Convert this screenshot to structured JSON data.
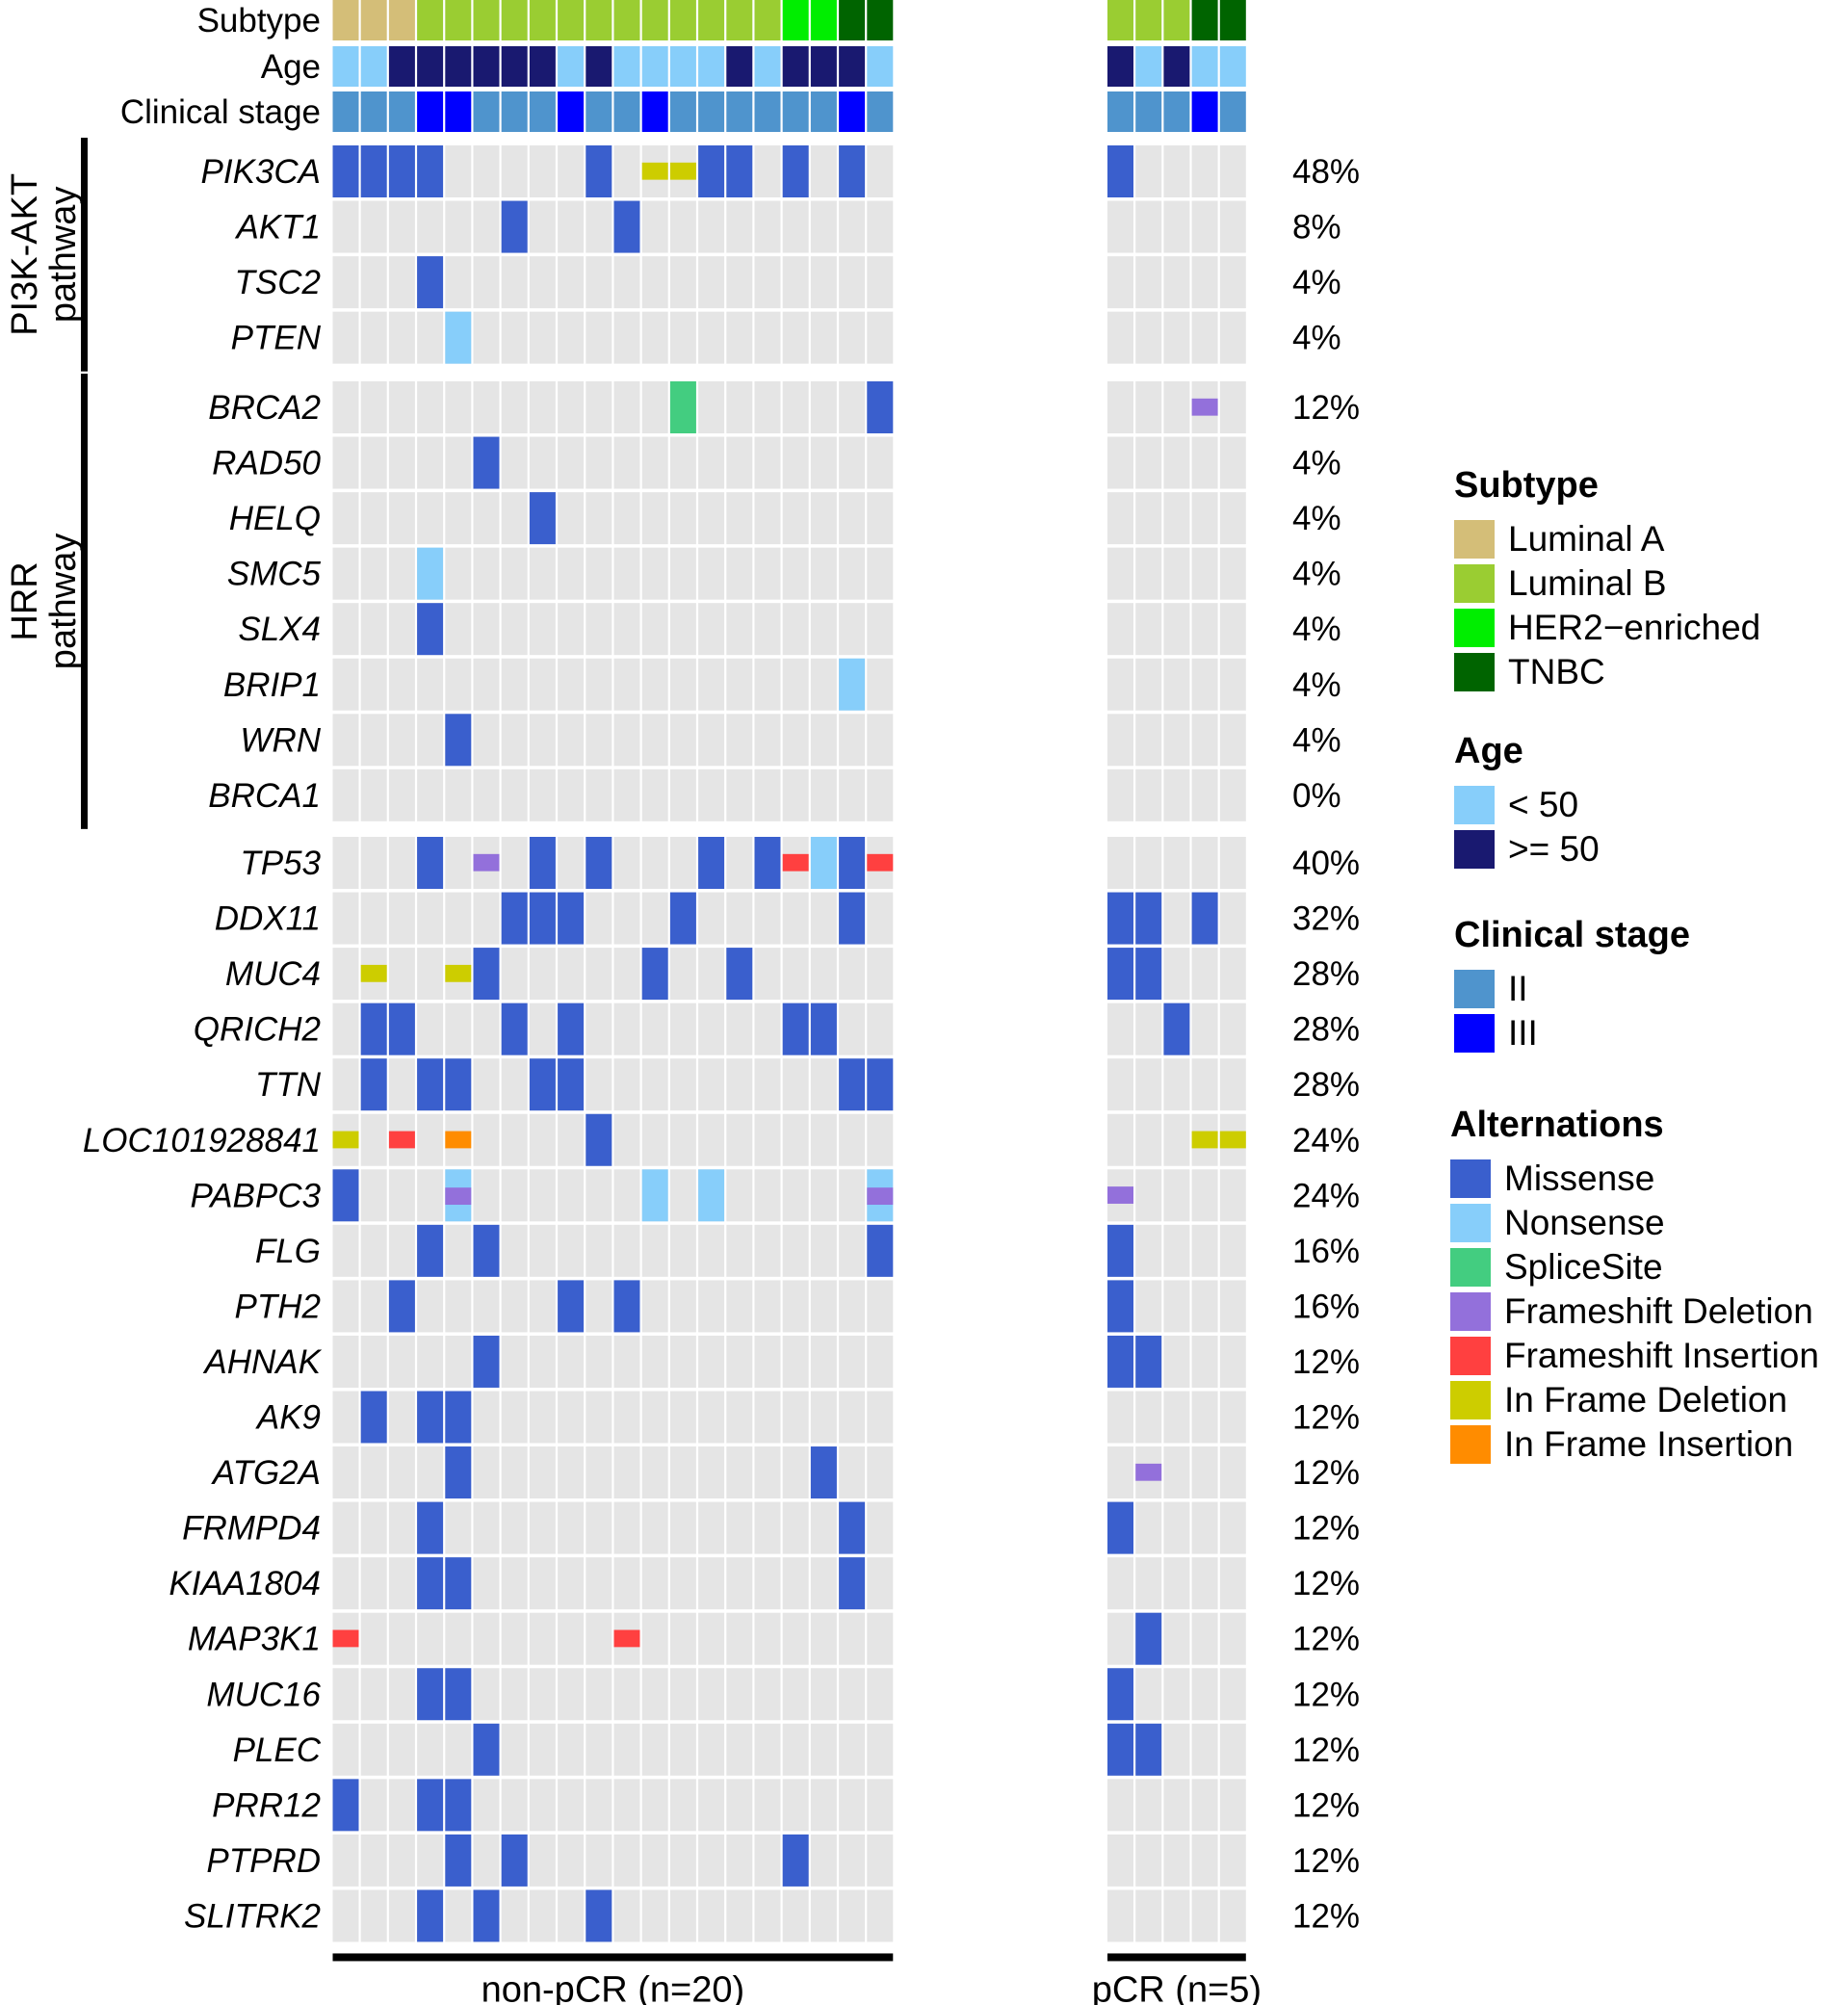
{
  "chart_data": {
    "type": "oncoprint",
    "title": "",
    "samples_per_group": [
      20,
      5
    ],
    "groups": [
      "non-pCR (n=20)",
      "pCR (n=5)"
    ],
    "annotation_tracks": {
      "labels": [
        "Subtype",
        "Age",
        "Clinical stage"
      ],
      "subtype": [
        "LA",
        "LA",
        "LA",
        "LB",
        "LB",
        "LB",
        "LB",
        "LB",
        "LB",
        "LB",
        "LB",
        "LB",
        "LB",
        "LB",
        "LB",
        "LB",
        "HER2",
        "HER2",
        "TNBC",
        "TNBC",
        "LB",
        "LB",
        "LB",
        "TNBC",
        "TNBC"
      ],
      "age": [
        "lt50",
        "lt50",
        "ge50",
        "ge50",
        "ge50",
        "ge50",
        "ge50",
        "ge50",
        "lt50",
        "ge50",
        "lt50",
        "lt50",
        "lt50",
        "lt50",
        "ge50",
        "lt50",
        "ge50",
        "ge50",
        "ge50",
        "lt50",
        "ge50",
        "lt50",
        "ge50",
        "lt50",
        "lt50"
      ],
      "stage": [
        "II",
        "II",
        "II",
        "III",
        "III",
        "II",
        "II",
        "II",
        "III",
        "II",
        "II",
        "III",
        "II",
        "II",
        "II",
        "II",
        "II",
        "II",
        "III",
        "II",
        "II",
        "II",
        "II",
        "III",
        "II"
      ]
    },
    "pathways": [
      {
        "name": "PI3K-AKT pathway",
        "lines": [
          "PI3K-AKT",
          "pathway"
        ],
        "first_gene": 0,
        "last_gene": 3
      },
      {
        "name": "HRR pathway",
        "lines": [
          "HRR",
          "pathway"
        ],
        "first_gene": 4,
        "last_gene": 11
      }
    ],
    "genes": [
      {
        "name": "PIK3CA",
        "pct": "48%",
        "alt": {
          "0": "M",
          "1": "M",
          "2": "M",
          "3": "M",
          "9": "M",
          "11": "IFD",
          "12": "IFD",
          "13": "M",
          "14": "M",
          "16": "M",
          "18": "M",
          "20": "M"
        }
      },
      {
        "name": "AKT1",
        "pct": "8%",
        "alt": {
          "6": "M",
          "10": "M"
        }
      },
      {
        "name": "TSC2",
        "pct": "4%",
        "alt": {
          "3": "M"
        }
      },
      {
        "name": "PTEN",
        "pct": "4%",
        "alt": {
          "4": "N"
        }
      },
      {
        "name": "BRCA2",
        "pct": "12%",
        "alt": {
          "12": "S",
          "19": "M",
          "23": "FD"
        }
      },
      {
        "name": "RAD50",
        "pct": "4%",
        "alt": {
          "5": "M"
        }
      },
      {
        "name": "HELQ",
        "pct": "4%",
        "alt": {
          "7": "M"
        }
      },
      {
        "name": "SMC5",
        "pct": "4%",
        "alt": {
          "3": "N"
        }
      },
      {
        "name": "SLX4",
        "pct": "4%",
        "alt": {
          "3": "M"
        }
      },
      {
        "name": "BRIP1",
        "pct": "4%",
        "alt": {
          "18": "N"
        }
      },
      {
        "name": "WRN",
        "pct": "4%",
        "alt": {
          "4": "M"
        }
      },
      {
        "name": "BRCA1",
        "pct": "0%",
        "alt": {}
      },
      {
        "name": "TP53",
        "pct": "40%",
        "alt": {
          "3": "M",
          "5": "FD",
          "7": "M",
          "9": "M",
          "13": "M",
          "15": "M",
          "16": "FI",
          "17": "N",
          "18": "M",
          "19": "FI"
        }
      },
      {
        "name": "DDX11",
        "pct": "32%",
        "alt": {
          "6": "M",
          "7": "M",
          "8": "M",
          "12": "M",
          "18": "M",
          "20": "M",
          "21": "M",
          "23": "M"
        }
      },
      {
        "name": "MUC4",
        "pct": "28%",
        "alt": {
          "1": "IFD",
          "4": "IFD",
          "5": "M",
          "11": "M",
          "14": "M",
          "20": "M",
          "21": "M"
        }
      },
      {
        "name": "QRICH2",
        "pct": "28%",
        "alt": {
          "1": "M",
          "2": "M",
          "6": "M",
          "8": "M",
          "16": "M",
          "17": "M",
          "22": "M"
        }
      },
      {
        "name": "TTN",
        "pct": "28%",
        "alt": {
          "1": "M",
          "3": "M",
          "4": "M",
          "7": "M",
          "8": "M",
          "18": "M",
          "19": "M"
        }
      },
      {
        "name": "LOC101928841",
        "pct": "24%",
        "alt": {
          "0": "IFD",
          "2": "FI",
          "4": "IFI",
          "9": "M",
          "23": "IFD",
          "24": "IFD"
        }
      },
      {
        "name": "PABPC3",
        "pct": "24%",
        "alt": {
          "0": "M",
          "4": "N+FD",
          "11": "N",
          "13": "N",
          "19": "N+FD",
          "20": "FD"
        }
      },
      {
        "name": "FLG",
        "pct": "16%",
        "alt": {
          "3": "M",
          "5": "M",
          "19": "M",
          "20": "M"
        }
      },
      {
        "name": "PTH2",
        "pct": "16%",
        "alt": {
          "2": "M",
          "8": "M",
          "10": "M",
          "20": "M"
        }
      },
      {
        "name": "AHNAK",
        "pct": "12%",
        "alt": {
          "5": "M",
          "20": "M",
          "21": "M"
        }
      },
      {
        "name": "AK9",
        "pct": "12%",
        "alt": {
          "1": "M",
          "3": "M",
          "4": "M"
        }
      },
      {
        "name": "ATG2A",
        "pct": "12%",
        "alt": {
          "4": "M",
          "17": "M",
          "21": "FD"
        }
      },
      {
        "name": "FRMPD4",
        "pct": "12%",
        "alt": {
          "3": "M",
          "18": "M",
          "20": "M"
        }
      },
      {
        "name": "KIAA1804",
        "pct": "12%",
        "alt": {
          "3": "M",
          "4": "M",
          "18": "M"
        }
      },
      {
        "name": "MAP3K1",
        "pct": "12%",
        "alt": {
          "0": "FI",
          "10": "FI",
          "21": "M"
        }
      },
      {
        "name": "MUC16",
        "pct": "12%",
        "alt": {
          "3": "M",
          "4": "M",
          "20": "M"
        }
      },
      {
        "name": "PLEC",
        "pct": "12%",
        "alt": {
          "5": "M",
          "20": "M",
          "21": "M"
        }
      },
      {
        "name": "PRR12",
        "pct": "12%",
        "alt": {
          "0": "M",
          "3": "M",
          "4": "M"
        }
      },
      {
        "name": "PTPRD",
        "pct": "12%",
        "alt": {
          "4": "M",
          "6": "M",
          "16": "M"
        }
      },
      {
        "name": "SLITRK2",
        "pct": "12%",
        "alt": {
          "3": "M",
          "5": "M",
          "9": "M"
        }
      }
    ],
    "legends": [
      {
        "title": "Subtype",
        "items": [
          {
            "key": "LA",
            "label": "Luminal A",
            "color": "#D4BE78"
          },
          {
            "key": "LB",
            "label": "Luminal B",
            "color": "#9ACD32"
          },
          {
            "key": "HER2",
            "label": "HER2−enriched",
            "color": "#00EE00"
          },
          {
            "key": "TNBC",
            "label": "TNBC",
            "color": "#006400"
          }
        ]
      },
      {
        "title": "Age",
        "items": [
          {
            "key": "lt50",
            "label": "< 50",
            "color": "#87CEFA"
          },
          {
            "key": ">=50",
            "label": ">= 50",
            "color": "#191970",
            "alias": "ge50"
          }
        ]
      },
      {
        "title": "Clinical stage",
        "items": [
          {
            "key": "II",
            "label": "II",
            "color": "#4F94CD"
          },
          {
            "key": "III",
            "label": "III",
            "color": "#0000FF"
          }
        ]
      },
      {
        "title": "Alternations",
        "items": [
          {
            "key": "M",
            "label": "Missense",
            "color": "#3A5FCD"
          },
          {
            "key": "N",
            "label": "Nonsense",
            "color": "#87CEFA"
          },
          {
            "key": "S",
            "label": "SpliceSite",
            "color": "#43CD80"
          },
          {
            "key": "FD",
            "label": "Frameshift Deletion",
            "color": "#9370DB"
          },
          {
            "key": "FI",
            "label": "Frameshift Insertion",
            "color": "#FF4040"
          },
          {
            "key": "IFD",
            "label": "In Frame Deletion",
            "color": "#CDCD00"
          },
          {
            "key": "IFI",
            "label": "In Frame Insertion",
            "color": "#FF8C00"
          }
        ]
      }
    ],
    "background_color": "#E5E5E5"
  }
}
